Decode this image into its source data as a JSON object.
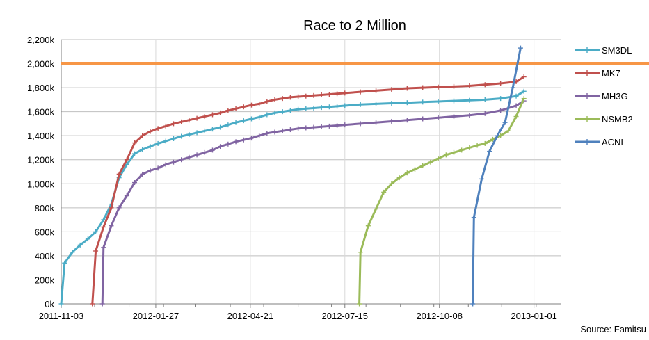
{
  "chart_data": {
    "type": "line",
    "title": "Race to 2 Million",
    "source": "Source: Famitsu",
    "x_axis": {
      "type": "date",
      "range": [
        "2011-11-03",
        "2013-01-25"
      ],
      "ticks": [
        "2011-11-03",
        "2012-01-27",
        "2012-04-21",
        "2012-07-15",
        "2012-10-08",
        "2013-01-01"
      ]
    },
    "y_axis": {
      "unit": "k",
      "range": [
        0,
        2200
      ],
      "ticks": [
        "0k",
        "200k",
        "400k",
        "600k",
        "800k",
        "1,000k",
        "1,200k",
        "1,400k",
        "1,600k",
        "1,800k",
        "2,000k",
        "2,200k"
      ],
      "tick_values": [
        0,
        200,
        400,
        600,
        800,
        1000,
        1200,
        1400,
        1600,
        1800,
        2000,
        2200
      ]
    },
    "grid": true,
    "legend_position": "right",
    "reference_line": {
      "y": 2000,
      "color": "#f79646"
    },
    "series": [
      {
        "name": "SM3DL",
        "color": "#4bacc6",
        "points": [
          [
            "2011-11-03",
            0
          ],
          [
            "2011-11-06",
            340
          ],
          [
            "2011-11-13",
            430
          ],
          [
            "2011-11-20",
            490
          ],
          [
            "2011-11-27",
            540
          ],
          [
            "2011-12-04",
            600
          ],
          [
            "2011-12-11",
            700
          ],
          [
            "2011-12-18",
            830
          ],
          [
            "2011-12-25",
            1050
          ],
          [
            "2012-01-01",
            1160
          ],
          [
            "2012-01-08",
            1250
          ],
          [
            "2012-01-15",
            1285
          ],
          [
            "2012-01-22",
            1310
          ],
          [
            "2012-01-29",
            1335
          ],
          [
            "2012-02-05",
            1355
          ],
          [
            "2012-02-12",
            1375
          ],
          [
            "2012-02-19",
            1395
          ],
          [
            "2012-02-26",
            1410
          ],
          [
            "2012-03-04",
            1425
          ],
          [
            "2012-03-11",
            1440
          ],
          [
            "2012-03-18",
            1455
          ],
          [
            "2012-03-25",
            1470
          ],
          [
            "2012-04-01",
            1490
          ],
          [
            "2012-04-08",
            1510
          ],
          [
            "2012-04-15",
            1525
          ],
          [
            "2012-04-22",
            1540
          ],
          [
            "2012-04-29",
            1555
          ],
          [
            "2012-05-06",
            1575
          ],
          [
            "2012-05-13",
            1590
          ],
          [
            "2012-05-20",
            1600
          ],
          [
            "2012-05-27",
            1610
          ],
          [
            "2012-06-03",
            1620
          ],
          [
            "2012-06-10",
            1625
          ],
          [
            "2012-06-17",
            1630
          ],
          [
            "2012-06-24",
            1635
          ],
          [
            "2012-07-01",
            1640
          ],
          [
            "2012-07-08",
            1645
          ],
          [
            "2012-07-15",
            1650
          ],
          [
            "2012-07-29",
            1660
          ],
          [
            "2012-08-12",
            1665
          ],
          [
            "2012-08-26",
            1670
          ],
          [
            "2012-09-09",
            1675
          ],
          [
            "2012-09-23",
            1680
          ],
          [
            "2012-10-07",
            1685
          ],
          [
            "2012-10-21",
            1690
          ],
          [
            "2012-11-04",
            1695
          ],
          [
            "2012-11-18",
            1700
          ],
          [
            "2012-12-02",
            1710
          ],
          [
            "2012-12-16",
            1730
          ],
          [
            "2012-12-23",
            1770
          ]
        ]
      },
      {
        "name": "MK7",
        "color": "#c0504d",
        "points": [
          [
            "2011-12-01",
            0
          ],
          [
            "2011-12-04",
            440
          ],
          [
            "2011-12-11",
            640
          ],
          [
            "2011-12-18",
            800
          ],
          [
            "2011-12-25",
            1080
          ],
          [
            "2012-01-01",
            1200
          ],
          [
            "2012-01-08",
            1340
          ],
          [
            "2012-01-15",
            1400
          ],
          [
            "2012-01-22",
            1435
          ],
          [
            "2012-01-29",
            1460
          ],
          [
            "2012-02-05",
            1480
          ],
          [
            "2012-02-12",
            1500
          ],
          [
            "2012-02-19",
            1515
          ],
          [
            "2012-02-26",
            1530
          ],
          [
            "2012-03-04",
            1545
          ],
          [
            "2012-03-11",
            1560
          ],
          [
            "2012-03-18",
            1575
          ],
          [
            "2012-03-25",
            1590
          ],
          [
            "2012-04-01",
            1610
          ],
          [
            "2012-04-08",
            1625
          ],
          [
            "2012-04-15",
            1640
          ],
          [
            "2012-04-22",
            1655
          ],
          [
            "2012-04-29",
            1665
          ],
          [
            "2012-05-06",
            1685
          ],
          [
            "2012-05-13",
            1700
          ],
          [
            "2012-05-20",
            1710
          ],
          [
            "2012-05-27",
            1720
          ],
          [
            "2012-06-03",
            1725
          ],
          [
            "2012-06-10",
            1730
          ],
          [
            "2012-06-17",
            1735
          ],
          [
            "2012-06-24",
            1740
          ],
          [
            "2012-07-01",
            1745
          ],
          [
            "2012-07-08",
            1750
          ],
          [
            "2012-07-15",
            1755
          ],
          [
            "2012-07-29",
            1765
          ],
          [
            "2012-08-12",
            1775
          ],
          [
            "2012-08-26",
            1785
          ],
          [
            "2012-09-09",
            1795
          ],
          [
            "2012-09-23",
            1800
          ],
          [
            "2012-10-07",
            1805
          ],
          [
            "2012-10-21",
            1810
          ],
          [
            "2012-11-04",
            1815
          ],
          [
            "2012-11-18",
            1825
          ],
          [
            "2012-12-02",
            1835
          ],
          [
            "2012-12-16",
            1850
          ],
          [
            "2012-12-23",
            1890
          ]
        ]
      },
      {
        "name": "MH3G",
        "color": "#8064a2",
        "points": [
          [
            "2011-12-10",
            0
          ],
          [
            "2011-12-11",
            470
          ],
          [
            "2011-12-18",
            650
          ],
          [
            "2011-12-25",
            800
          ],
          [
            "2012-01-01",
            900
          ],
          [
            "2012-01-08",
            1010
          ],
          [
            "2012-01-15",
            1080
          ],
          [
            "2012-01-22",
            1110
          ],
          [
            "2012-01-29",
            1130
          ],
          [
            "2012-02-05",
            1160
          ],
          [
            "2012-02-12",
            1180
          ],
          [
            "2012-02-19",
            1200
          ],
          [
            "2012-02-26",
            1220
          ],
          [
            "2012-03-04",
            1240
          ],
          [
            "2012-03-11",
            1260
          ],
          [
            "2012-03-18",
            1280
          ],
          [
            "2012-03-25",
            1310
          ],
          [
            "2012-04-01",
            1330
          ],
          [
            "2012-04-08",
            1350
          ],
          [
            "2012-04-15",
            1365
          ],
          [
            "2012-04-22",
            1380
          ],
          [
            "2012-04-29",
            1400
          ],
          [
            "2012-05-06",
            1420
          ],
          [
            "2012-05-13",
            1430
          ],
          [
            "2012-05-20",
            1440
          ],
          [
            "2012-05-27",
            1450
          ],
          [
            "2012-06-03",
            1460
          ],
          [
            "2012-06-10",
            1465
          ],
          [
            "2012-06-17",
            1470
          ],
          [
            "2012-06-24",
            1475
          ],
          [
            "2012-07-01",
            1480
          ],
          [
            "2012-07-08",
            1485
          ],
          [
            "2012-07-15",
            1490
          ],
          [
            "2012-07-29",
            1500
          ],
          [
            "2012-08-12",
            1510
          ],
          [
            "2012-08-26",
            1520
          ],
          [
            "2012-09-09",
            1530
          ],
          [
            "2012-09-23",
            1540
          ],
          [
            "2012-10-07",
            1550
          ],
          [
            "2012-10-21",
            1560
          ],
          [
            "2012-11-04",
            1570
          ],
          [
            "2012-11-18",
            1585
          ],
          [
            "2012-12-02",
            1610
          ],
          [
            "2012-12-16",
            1650
          ],
          [
            "2012-12-23",
            1690
          ]
        ]
      },
      {
        "name": "NSMB2",
        "color": "#9bbb59",
        "points": [
          [
            "2012-07-28",
            0
          ],
          [
            "2012-07-29",
            430
          ],
          [
            "2012-08-05",
            650
          ],
          [
            "2012-08-12",
            790
          ],
          [
            "2012-08-19",
            930
          ],
          [
            "2012-08-26",
            1000
          ],
          [
            "2012-09-02",
            1050
          ],
          [
            "2012-09-09",
            1090
          ],
          [
            "2012-09-16",
            1120
          ],
          [
            "2012-09-23",
            1150
          ],
          [
            "2012-09-30",
            1180
          ],
          [
            "2012-10-07",
            1210
          ],
          [
            "2012-10-14",
            1240
          ],
          [
            "2012-10-21",
            1260
          ],
          [
            "2012-10-28",
            1280
          ],
          [
            "2012-11-04",
            1300
          ],
          [
            "2012-11-11",
            1320
          ],
          [
            "2012-11-18",
            1335
          ],
          [
            "2012-11-25",
            1370
          ],
          [
            "2012-12-02",
            1400
          ],
          [
            "2012-12-09",
            1440
          ],
          [
            "2012-12-16",
            1560
          ],
          [
            "2012-12-23",
            1710
          ]
        ]
      },
      {
        "name": "ACNL",
        "color": "#4f81bd",
        "points": [
          [
            "2012-11-07",
            0
          ],
          [
            "2012-11-08",
            720
          ],
          [
            "2012-11-15",
            1040
          ],
          [
            "2012-11-22",
            1270
          ],
          [
            "2012-11-29",
            1400
          ],
          [
            "2012-12-06",
            1510
          ],
          [
            "2012-12-13",
            1800
          ],
          [
            "2012-12-20",
            2130
          ]
        ]
      }
    ]
  }
}
